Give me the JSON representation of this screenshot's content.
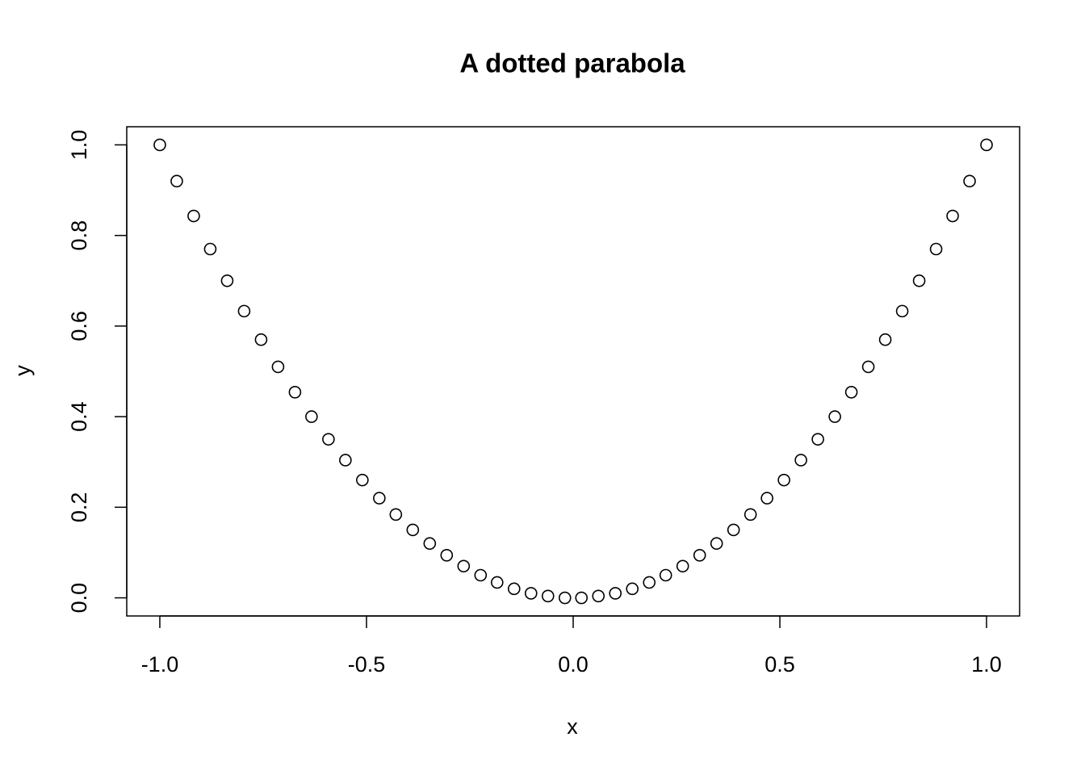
{
  "chart_data": {
    "type": "scatter",
    "title": "A dotted parabola",
    "x_label": "x",
    "y_label": "y",
    "x": [
      -1,
      -0.959,
      -0.918,
      -0.878,
      -0.837,
      -0.796,
      -0.755,
      -0.714,
      -0.673,
      -0.633,
      -0.592,
      -0.551,
      -0.51,
      -0.469,
      -0.429,
      -0.388,
      -0.347,
      -0.306,
      -0.265,
      -0.224,
      -0.184,
      -0.143,
      -0.102,
      -0.061,
      -0.02,
      0.02,
      0.061,
      0.102,
      0.143,
      0.184,
      0.224,
      0.265,
      0.306,
      0.347,
      0.388,
      0.429,
      0.469,
      0.51,
      0.551,
      0.592,
      0.633,
      0.673,
      0.714,
      0.755,
      0.796,
      0.837,
      0.878,
      0.918,
      0.959,
      1
    ],
    "series": [
      {
        "name": "y",
        "color": "#000000",
        "values": [
          1,
          0.92,
          0.843,
          0.77,
          0.7,
          0.633,
          0.57,
          0.51,
          0.454,
          0.4,
          0.35,
          0.304,
          0.26,
          0.22,
          0.184,
          0.15,
          0.12,
          0.094,
          0.07,
          0.05,
          0.034,
          0.02,
          0.01,
          0.004,
          0,
          0,
          0.004,
          0.01,
          0.02,
          0.034,
          0.05,
          0.07,
          0.094,
          0.12,
          0.15,
          0.184,
          0.22,
          0.26,
          0.304,
          0.35,
          0.4,
          0.454,
          0.51,
          0.57,
          0.633,
          0.7,
          0.77,
          0.843,
          0.92,
          1
        ]
      }
    ],
    "xlim": [
      -1.08,
      1.08
    ],
    "ylim": [
      -0.04,
      1.04
    ],
    "xticks": [
      {
        "value": -1,
        "label": "-1.0"
      },
      -0.5,
      {
        "value": 0,
        "label": "0.0"
      },
      0.5,
      {
        "value": 1,
        "label": "1.0"
      }
    ],
    "yticks": [
      {
        "value": 0,
        "label": "0.0"
      },
      0.2,
      0.4,
      0.6,
      0.8,
      {
        "value": 1,
        "label": "1.0"
      }
    ],
    "grid": false
  }
}
